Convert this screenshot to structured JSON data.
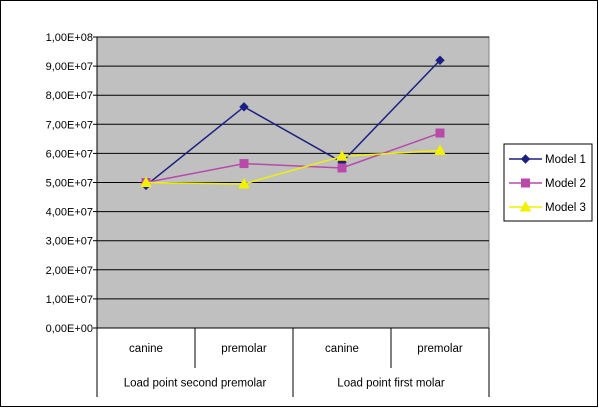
{
  "chart_data": {
    "type": "line",
    "title": "",
    "xlabel": "",
    "ylabel": "",
    "categories": [
      "canine",
      "premolar",
      "canine",
      "premolar"
    ],
    "category_groups": [
      {
        "label": "Load point second premolar",
        "span": [
          0,
          1
        ]
      },
      {
        "label": "Load point first molar",
        "span": [
          2,
          3
        ]
      }
    ],
    "ylim": [
      0,
      100000000
    ],
    "yticks": [
      {
        "value": 0,
        "label": "0,00E+00"
      },
      {
        "value": 10000000,
        "label": "1,00E+07"
      },
      {
        "value": 20000000,
        "label": "2,00E+07"
      },
      {
        "value": 30000000,
        "label": "3,00E+07"
      },
      {
        "value": 40000000,
        "label": "4,00E+07"
      },
      {
        "value": 50000000,
        "label": "5,00E+07"
      },
      {
        "value": 60000000,
        "label": "6,00E+07"
      },
      {
        "value": 70000000,
        "label": "7,00E+07"
      },
      {
        "value": 80000000,
        "label": "8,00E+07"
      },
      {
        "value": 90000000,
        "label": "9,00E+07"
      },
      {
        "value": 100000000,
        "label": "1,00E+08"
      }
    ],
    "grid": "horizontal",
    "plot_background": "#c0c0c0",
    "legend_position": "right",
    "series": [
      {
        "name": "Model 1",
        "color": "#1c1f82",
        "marker": "diamond",
        "values": [
          49000000,
          76000000,
          57000000,
          92000000
        ]
      },
      {
        "name": "Model 2",
        "color": "#b84aaa",
        "marker": "square",
        "values": [
          50000000,
          56500000,
          55000000,
          67000000
        ]
      },
      {
        "name": "Model 3",
        "color": "#f2f200",
        "marker": "triangle",
        "values": [
          50000000,
          49500000,
          59000000,
          61000000
        ]
      }
    ]
  }
}
